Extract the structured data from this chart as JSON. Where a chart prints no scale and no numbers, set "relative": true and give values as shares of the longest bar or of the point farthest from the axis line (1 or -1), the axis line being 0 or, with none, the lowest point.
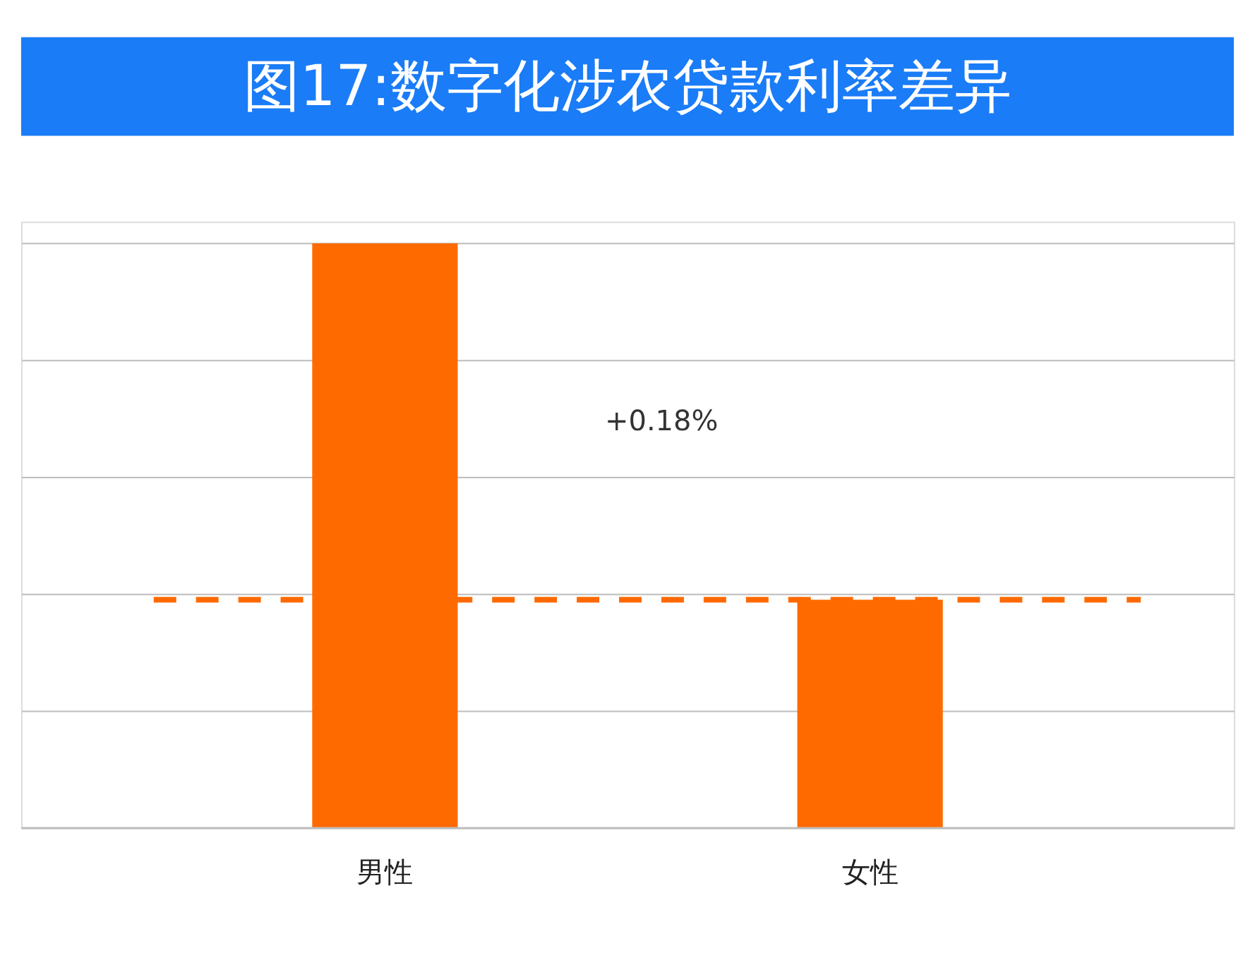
{
  "chart_data": {
    "type": "bar",
    "title": "图17:数字化涉农贷款利率差异",
    "categories": [
      "男性",
      "女性"
    ],
    "values": [
      1,
      0.39
    ],
    "color": "#ff6a00",
    "relative": true,
    "grid": "y",
    "ref_lines": [
      {
        "axis": "y",
        "value": 0.39,
        "color": "#ff6a00",
        "line_style": "dashed"
      }
    ],
    "annotations": [
      "+0.18%"
    ]
  }
}
